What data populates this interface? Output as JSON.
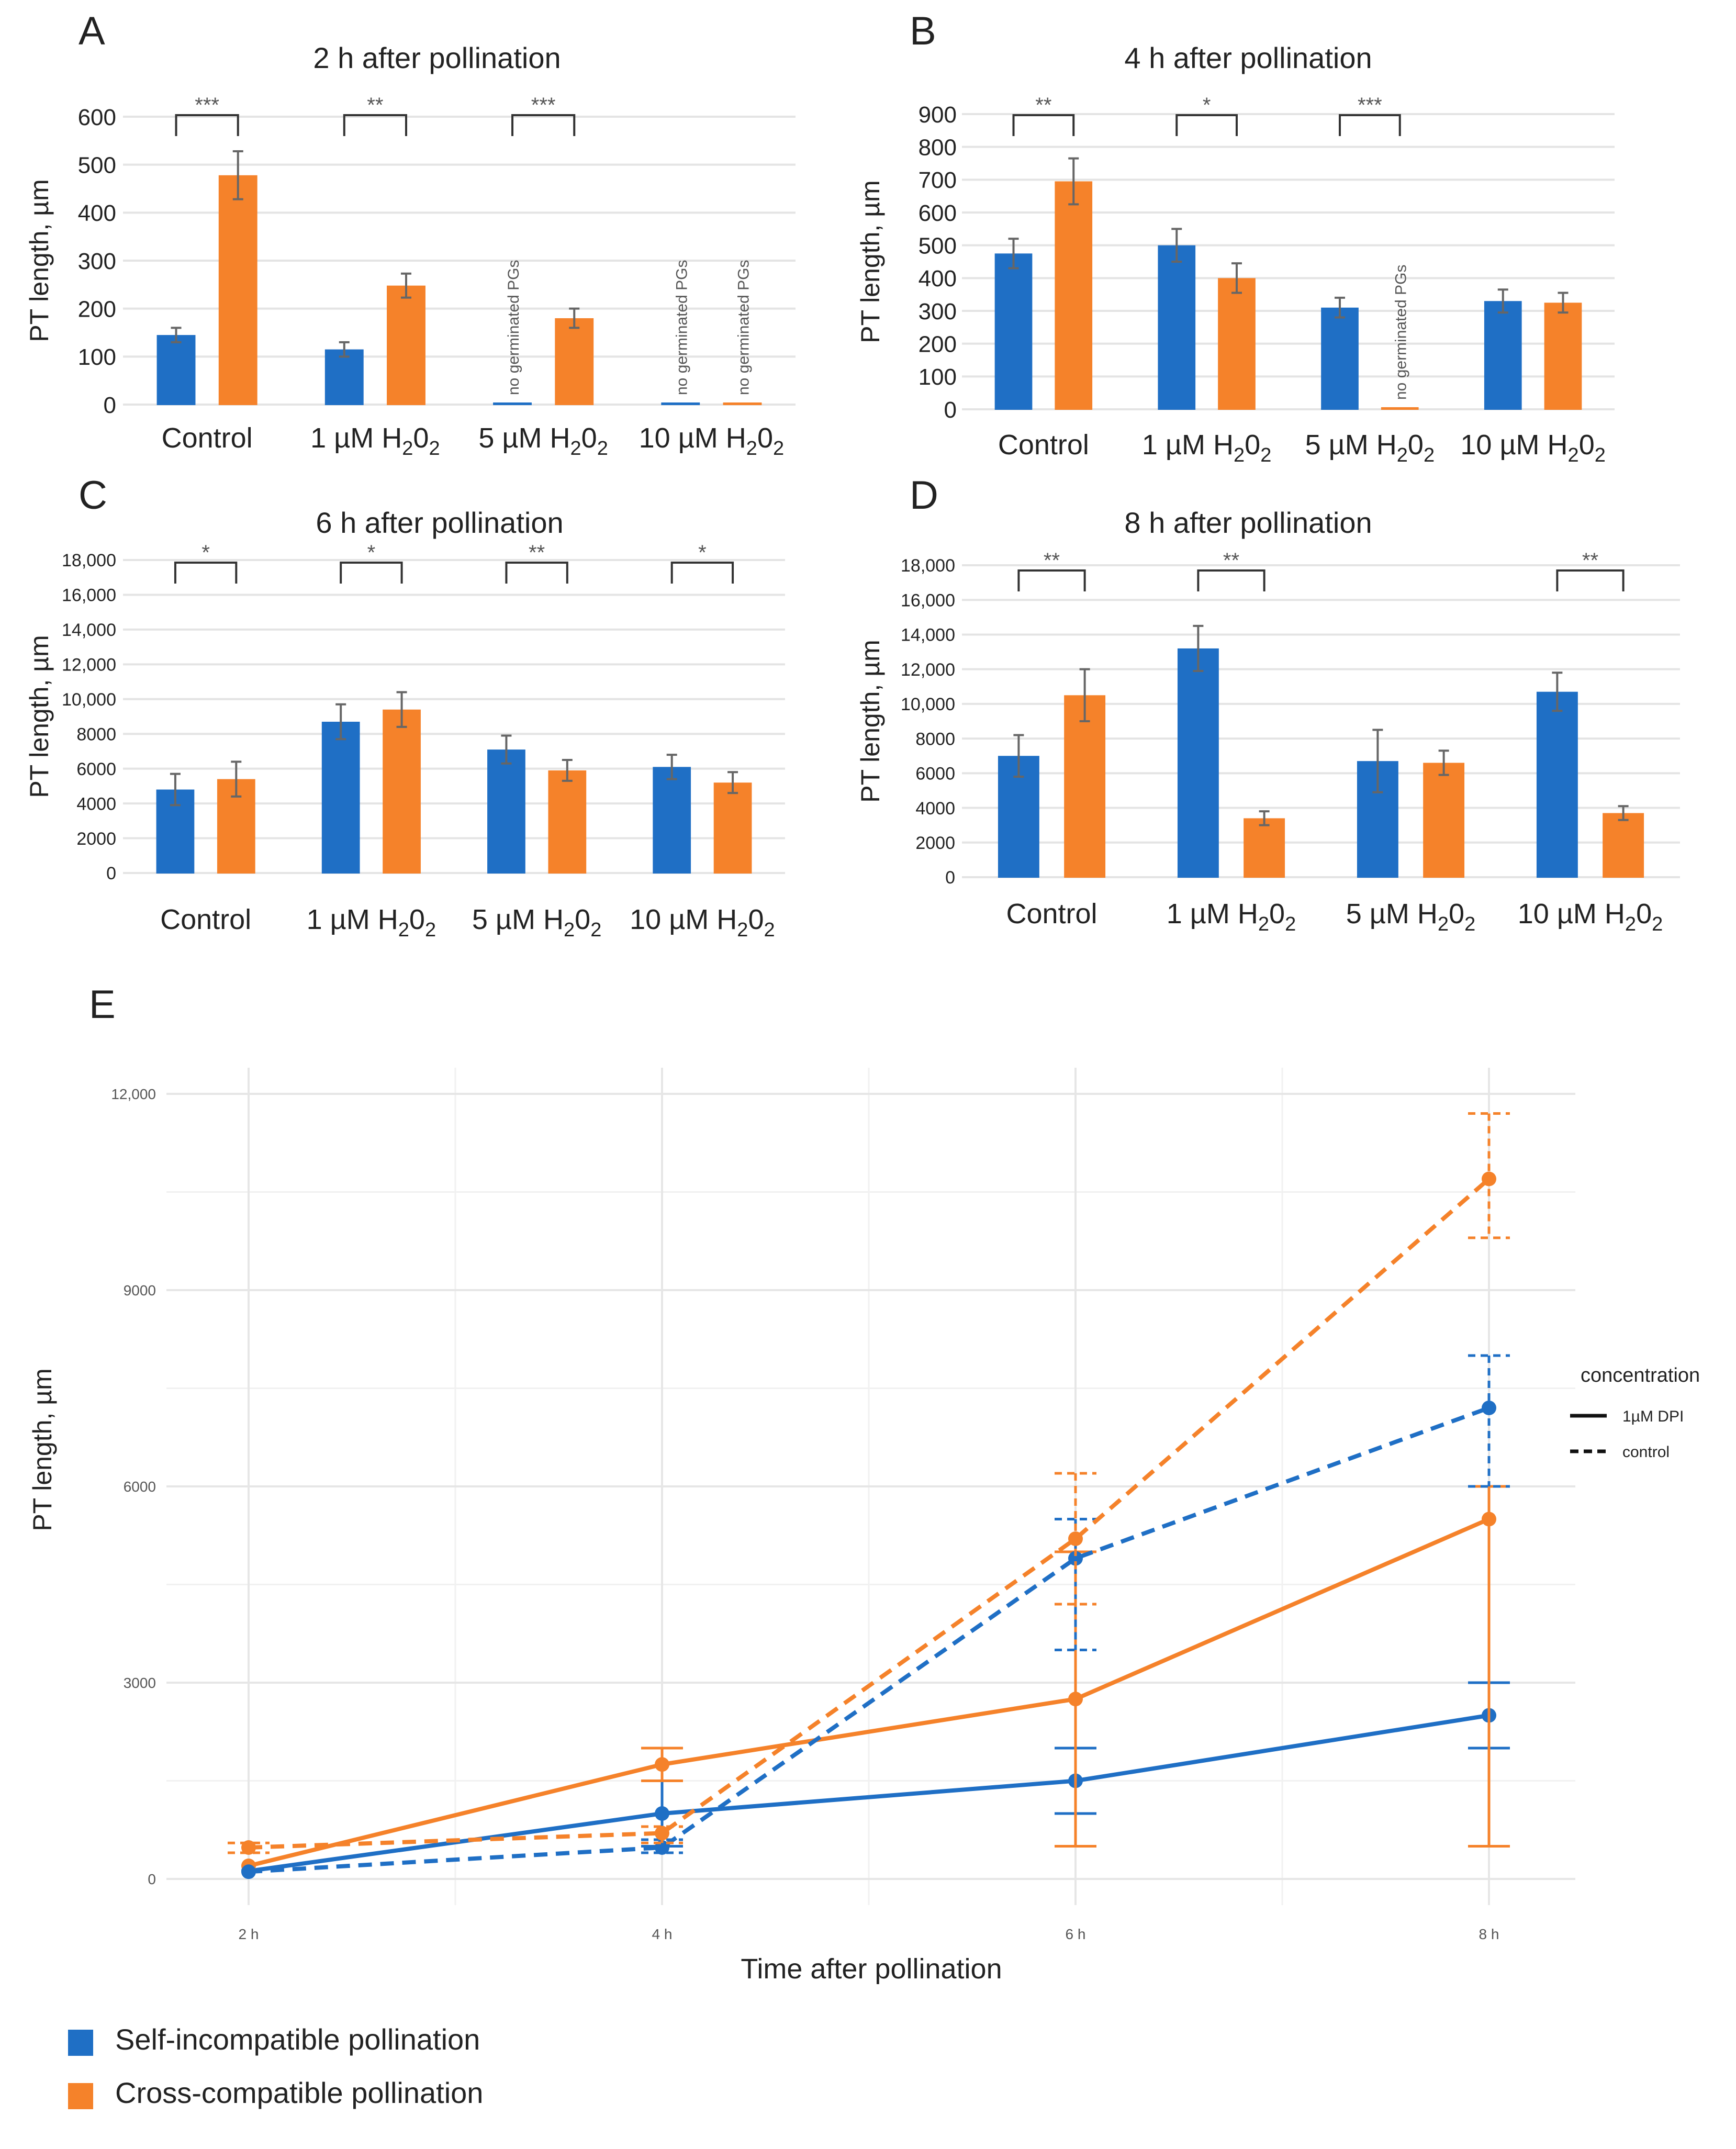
{
  "colors": {
    "self": "#1f6fc5",
    "cross": "#f5822a",
    "grid": "#e6e6e6",
    "text": "#222222"
  },
  "legend": {
    "self_label": "Self-incompatible pollination",
    "cross_label": "Cross-compatible pollination"
  },
  "chart_data": [
    {
      "panel": "A",
      "type": "bar",
      "title": "2 h after pollination",
      "ylabel": "PT length, µm",
      "ylim": [
        0,
        600
      ],
      "yticks": [
        "0",
        "100",
        "200",
        "300",
        "400",
        "500",
        "600"
      ],
      "categories": [
        {
          "main": "Control",
          "h2o2": false
        },
        {
          "main": "1 µM H",
          "h2o2": true
        },
        {
          "main": "5 µM H",
          "h2o2": true
        },
        {
          "main": "10 µM H",
          "h2o2": true
        }
      ],
      "series": [
        {
          "name": "Self-incompatible pollination",
          "values": [
            145,
            115,
            0,
            0
          ],
          "errors": [
            15,
            15,
            0,
            0
          ]
        },
        {
          "name": "Cross-compatible pollination",
          "values": [
            478,
            248,
            180,
            0
          ],
          "errors": [
            50,
            25,
            20,
            0
          ]
        }
      ],
      "notes": [
        {
          "category": 2,
          "series": 0,
          "text": "no germinated PGs"
        },
        {
          "category": 3,
          "series": 0,
          "text": "no germinated PGs"
        },
        {
          "category": 3,
          "series": 1,
          "text": "no germinated PGs"
        }
      ],
      "significance": [
        "***",
        "**",
        "***",
        ""
      ]
    },
    {
      "panel": "B",
      "type": "bar",
      "title": "4 h after pollination",
      "ylabel": "PT length, µm",
      "ylim": [
        0,
        900
      ],
      "yticks": [
        "0",
        "100",
        "200",
        "300",
        "400",
        "500",
        "600",
        "700",
        "800",
        "900"
      ],
      "categories": [
        {
          "main": "Control",
          "h2o2": false
        },
        {
          "main": "1 µM H",
          "h2o2": true
        },
        {
          "main": "5 µM H",
          "h2o2": true
        },
        {
          "main": "10 µM H",
          "h2o2": true
        }
      ],
      "series": [
        {
          "name": "Self-incompatible pollination",
          "values": [
            475,
            500,
            310,
            330
          ],
          "errors": [
            45,
            50,
            30,
            35
          ]
        },
        {
          "name": "Cross-compatible pollination",
          "values": [
            695,
            400,
            0,
            325
          ],
          "errors": [
            70,
            45,
            0,
            30
          ]
        }
      ],
      "notes": [
        {
          "category": 2,
          "series": 1,
          "text": "no germinated PGs"
        }
      ],
      "significance": [
        "**",
        "*",
        "***",
        ""
      ]
    },
    {
      "panel": "C",
      "type": "bar",
      "title": "6 h after pollination",
      "ylabel": "PT length, µm",
      "ylim": [
        0,
        18000
      ],
      "yticks": [
        "0",
        "2000",
        "4000",
        "6000",
        "8000",
        "10,000",
        "12,000",
        "14,000",
        "16,000",
        "18,000"
      ],
      "categories": [
        {
          "main": "Control",
          "h2o2": false
        },
        {
          "main": "1 µM H",
          "h2o2": true
        },
        {
          "main": "5 µM H",
          "h2o2": true
        },
        {
          "main": "10 µM H",
          "h2o2": true
        }
      ],
      "series": [
        {
          "name": "Self-incompatible pollination",
          "values": [
            4800,
            8700,
            7100,
            6100
          ],
          "errors": [
            900,
            1000,
            800,
            700
          ]
        },
        {
          "name": "Cross-compatible pollination",
          "values": [
            5400,
            9400,
            5900,
            5200
          ],
          "errors": [
            1000,
            1000,
            600,
            600
          ]
        }
      ],
      "notes": [],
      "significance": [
        "*",
        "*",
        "**",
        "*"
      ]
    },
    {
      "panel": "D",
      "type": "bar",
      "title": "8 h after pollination",
      "ylabel": "PT length, µm",
      "ylim": [
        0,
        18000
      ],
      "yticks": [
        "0",
        "2000",
        "4000",
        "6000",
        "8000",
        "10,000",
        "12,000",
        "14,000",
        "16,000",
        "18,000"
      ],
      "categories": [
        {
          "main": "Control",
          "h2o2": false
        },
        {
          "main": "1 µM H",
          "h2o2": true
        },
        {
          "main": "5 µM H",
          "h2o2": true
        },
        {
          "main": "10 µM H",
          "h2o2": true
        }
      ],
      "series": [
        {
          "name": "Self-incompatible pollination",
          "values": [
            7000,
            13200,
            6700,
            10700
          ],
          "errors": [
            1200,
            1300,
            1800,
            1100
          ]
        },
        {
          "name": "Cross-compatible pollination",
          "values": [
            10500,
            3400,
            6600,
            3700
          ],
          "errors": [
            1500,
            400,
            700,
            400
          ]
        }
      ],
      "notes": [],
      "significance": [
        "**",
        "**",
        "",
        "**"
      ]
    },
    {
      "panel": "E",
      "type": "line",
      "title": "",
      "xlabel": "Time after pollination",
      "ylabel": "PT length, µm",
      "x": [
        "2 h",
        "4 h",
        "6 h",
        "8 h"
      ],
      "ylim": [
        -400,
        12400
      ],
      "yticks": [
        0,
        3000,
        6000,
        9000,
        12000
      ],
      "ytick_labels": [
        "0",
        "3000",
        "6000",
        "9000",
        "12,000"
      ],
      "legend_title": "concentration",
      "line_styles": [
        {
          "style": "solid",
          "label": "1µM DPI"
        },
        {
          "style": "dashed",
          "label": "control"
        }
      ],
      "series": [
        {
          "pollination": "self",
          "style": "solid",
          "values": [
            120,
            1000,
            1500,
            2500
          ],
          "err_low": [
            0,
            500,
            1000,
            2000
          ],
          "err_high": [
            0,
            1500,
            2000,
            3000
          ]
        },
        {
          "pollination": "cross",
          "style": "solid",
          "values": [
            200,
            1750,
            2750,
            5500
          ],
          "err_low": [
            0,
            1500,
            500,
            500
          ],
          "err_high": [
            0,
            2000,
            5000,
            6000
          ]
        },
        {
          "pollination": "self",
          "style": "dashed",
          "values": [
            110,
            480,
            4900,
            7200
          ],
          "err_low": [
            0,
            400,
            3500,
            6000
          ],
          "err_high": [
            0,
            600,
            5500,
            8000
          ]
        },
        {
          "pollination": "cross",
          "style": "dashed",
          "values": [
            480,
            700,
            5200,
            10700
          ],
          "err_low": [
            400,
            550,
            4200,
            9800
          ],
          "err_high": [
            550,
            800,
            6200,
            11700
          ]
        }
      ]
    }
  ]
}
